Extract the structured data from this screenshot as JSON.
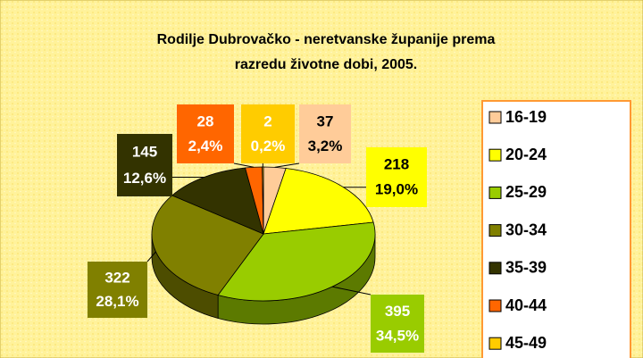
{
  "chart_data": {
    "type": "pie3d",
    "title": [
      "Rodilje Dubrovačko - neretvanske županije prema",
      "razredu životne dobi, 2005."
    ],
    "categories": [
      "16-19",
      "20-24",
      "25-29",
      "30-34",
      "35-39",
      "40-44",
      "45-49"
    ],
    "values": [
      37,
      218,
      395,
      322,
      145,
      28,
      2
    ],
    "shares": [
      3.2,
      19.0,
      34.5,
      28.1,
      12.6,
      2.4,
      0.2
    ],
    "share_labels": [
      "3,2%",
      "19,0%",
      "34,5%",
      "28,1%",
      "12,6%",
      "2,4%",
      "0,2%"
    ],
    "colors": [
      "#ffcc99",
      "#ffff00",
      "#99cc00",
      "#808000",
      "#333300",
      "#ff6600",
      "#ffcc00"
    ],
    "legend": "right"
  }
}
